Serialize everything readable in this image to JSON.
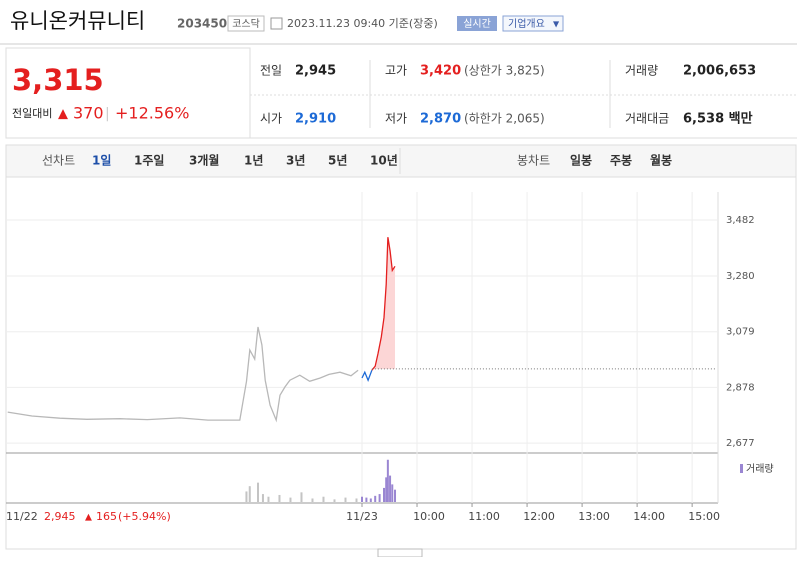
{
  "header": {
    "name": "유니온커뮤니티",
    "code": "203450",
    "market": "코스닥",
    "datetime": "2023.11.23 09:40 기준(장중)",
    "realtime": "실시간",
    "company_button": "기업개요"
  },
  "price": {
    "current": "3,315",
    "change_label": "전일대비",
    "change": "370",
    "change_pct": "+12.56%"
  },
  "stats": [
    {
      "label": "전일",
      "value": "2,945"
    },
    {
      "label": "고가",
      "value": "3,420",
      "note": "(상한가 3,825)"
    },
    {
      "label": "거래량",
      "value": "2,006,653"
    },
    {
      "label": "시가",
      "value": "2,910"
    },
    {
      "label": "저가",
      "value": "2,870",
      "note": "(하한가 2,065)"
    },
    {
      "label": "거래대금",
      "value": "6,538 백만"
    }
  ],
  "tabs": {
    "line_label": "선차트",
    "line": [
      "1일",
      "1주일",
      "3개월",
      "1년",
      "3년",
      "5년",
      "10년"
    ],
    "candle_label": "봉차트",
    "candle": [
      "일봉",
      "주봉",
      "월봉"
    ]
  },
  "footer": {
    "prev_date": "11/22",
    "prev_close": "2,945",
    "prev_change": "165",
    "prev_pct": "(+5.94%)"
  },
  "chart_data": [
    {
      "type": "line",
      "xlim": [
        2.53,
        15.47
      ],
      "ylim": [
        2645,
        3583
      ],
      "yticks": [
        {
          "value": 3482,
          "label": "3,482"
        },
        {
          "value": 3280,
          "label": "3,280"
        },
        {
          "value": 3079,
          "label": "3,079"
        },
        {
          "value": 2878,
          "label": "2,878"
        },
        {
          "value": 2677,
          "label": "2,677"
        }
      ],
      "xticks": [
        {
          "value": 9,
          "label": "11/23"
        },
        {
          "value": 10,
          "label": "10:00"
        },
        {
          "value": 11,
          "label": "11:00"
        },
        {
          "value": 12,
          "label": "12:00"
        },
        {
          "value": 13,
          "label": "13:00"
        },
        {
          "value": 14,
          "label": "14:00"
        },
        {
          "value": 15,
          "label": "15:00"
        }
      ],
      "reference_line": 2945,
      "reference_color": "#777777",
      "series": [
        {
          "color": "#b8b8b8",
          "x": [
            2.56,
            3.0,
            3.51,
            4.0,
            4.6,
            5.1,
            5.69,
            6.2,
            6.78,
            6.9,
            6.96,
            7.05,
            7.11,
            7.18,
            7.24,
            7.33,
            7.44,
            7.51,
            7.6,
            7.69,
            7.87,
            8.05,
            8.24,
            8.4,
            8.6,
            8.8,
            8.93
          ],
          "values": [
            2789,
            2775,
            2767,
            2763,
            2765,
            2762,
            2768,
            2760,
            2760,
            2900,
            3013,
            2980,
            3096,
            3031,
            2904,
            2814,
            2760,
            2850,
            2880,
            2904,
            2922,
            2900,
            2912,
            2925,
            2933,
            2920,
            2940
          ]
        },
        {
          "color": "#1d6ad6",
          "x": [
            9.0,
            9.05,
            9.11,
            9.18
          ],
          "values": [
            2912,
            2933,
            2904,
            2940
          ]
        },
        {
          "color": "#e41f1f",
          "fill": "#fcd6d6",
          "x": [
            9.18,
            9.24,
            9.29,
            9.35,
            9.4,
            9.44,
            9.47,
            9.51,
            9.55,
            9.6
          ],
          "values": [
            2940,
            2955,
            3000,
            3060,
            3130,
            3250,
            3420,
            3370,
            3300,
            3315
          ]
        }
      ]
    },
    {
      "type": "bar",
      "label": "거래량",
      "xlim": [
        2.53,
        15.47
      ],
      "ylim": [
        0,
        50000
      ],
      "series": [
        {
          "color": "#c4c4c4",
          "x": [
            6.9,
            6.96,
            7.11,
            7.2,
            7.3,
            7.5,
            7.7,
            7.9,
            8.1,
            8.3,
            8.5,
            8.7,
            8.9
          ],
          "values": [
            12000,
            18000,
            22000,
            9000,
            6000,
            8000,
            5000,
            11000,
            4000,
            6000,
            3000,
            5000,
            4000
          ]
        },
        {
          "color": "#9a86d2",
          "x": [
            9.0,
            9.08,
            9.16,
            9.24,
            9.32,
            9.4,
            9.44,
            9.47,
            9.51,
            9.55,
            9.6
          ],
          "values": [
            6000,
            5000,
            4000,
            7000,
            9000,
            16000,
            28000,
            48000,
            30000,
            20000,
            14000
          ]
        }
      ]
    }
  ]
}
